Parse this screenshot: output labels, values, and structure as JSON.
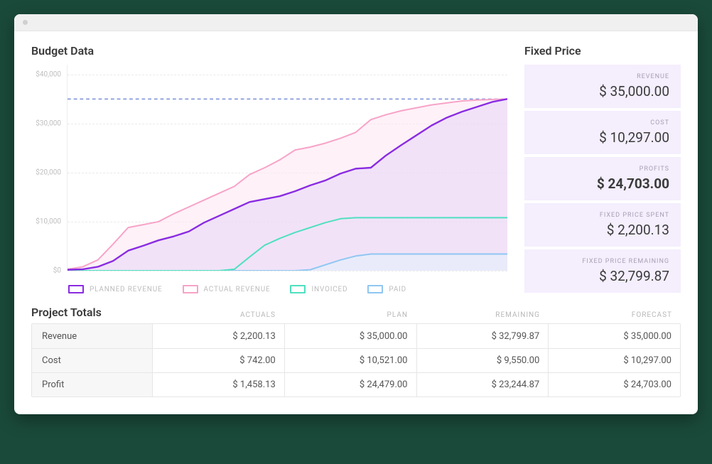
{
  "window": {
    "title": ""
  },
  "sections": {
    "budget_title": "Budget Data",
    "fixed_price_title": "Fixed Price",
    "project_totals_title": "Project Totals"
  },
  "chart": {
    "type": "area-line",
    "background_color": "#ffffff",
    "grid_color": "#eaeaea",
    "grid_dash": "4 4",
    "ylim": [
      0,
      42000
    ],
    "yticks": [
      {
        "v": 0,
        "label": "$0"
      },
      {
        "v": 10000,
        "label": "$10,000"
      },
      {
        "v": 20000,
        "label": "$20,000"
      },
      {
        "v": 30000,
        "label": "$30,000"
      },
      {
        "v": 40000,
        "label": "$40,000"
      }
    ],
    "x_count": 30,
    "target_line": {
      "value": 35000,
      "color": "#7a8fd6",
      "dash": "5 4",
      "width": 1.5
    },
    "series": [
      {
        "key": "planned_revenue",
        "label": "PLANNED REVENUE",
        "stroke": "#8a2be2",
        "fill": "#e6d6fa",
        "fill_opacity": 0.55,
        "width": 2.4,
        "values": [
          200,
          300,
          800,
          2000,
          4100,
          5100,
          6200,
          7000,
          8000,
          9800,
          11200,
          12600,
          14000,
          14600,
          15200,
          16200,
          17400,
          18400,
          19800,
          20800,
          21000,
          23500,
          25600,
          27600,
          29600,
          31200,
          32400,
          33400,
          34400,
          35000
        ]
      },
      {
        "key": "actual_revenue",
        "label": "ACTUAL REVENUE",
        "stroke": "#f7a3c8",
        "fill": "#fde6f1",
        "fill_opacity": 0.55,
        "width": 2,
        "values": [
          300,
          800,
          2200,
          5400,
          8800,
          9400,
          10000,
          11600,
          13000,
          14400,
          15800,
          17200,
          19600,
          21000,
          22600,
          24600,
          25200,
          26000,
          27000,
          28200,
          30800,
          31800,
          32600,
          33200,
          33800,
          34200,
          34600,
          34800,
          34900,
          35000
        ]
      },
      {
        "key": "invoiced",
        "label": "INVOICED",
        "stroke": "#4fe0c0",
        "fill": "none",
        "fill_opacity": 0,
        "width": 2,
        "values": [
          0,
          0,
          0,
          0,
          0,
          0,
          0,
          0,
          0,
          0,
          0,
          300,
          2800,
          5200,
          6600,
          7800,
          8800,
          9800,
          10600,
          10800,
          10800,
          10800,
          10800,
          10800,
          10800,
          10800,
          10800,
          10800,
          10800,
          10800
        ]
      },
      {
        "key": "paid",
        "label": "PAID",
        "stroke": "#8fc7f2",
        "fill": "#e5f1fb",
        "fill_opacity": 0.6,
        "width": 2,
        "values": [
          0,
          0,
          0,
          0,
          0,
          0,
          0,
          0,
          0,
          0,
          0,
          0,
          0,
          0,
          0,
          0,
          200,
          1200,
          2200,
          3000,
          3400,
          3400,
          3400,
          3400,
          3400,
          3400,
          3400,
          3400,
          3400,
          3400
        ]
      }
    ],
    "legend": [
      {
        "label": "PLANNED REVENUE",
        "color": "#8a2be2"
      },
      {
        "label": "ACTUAL REVENUE",
        "color": "#f7a3c8"
      },
      {
        "label": "INVOICED",
        "color": "#4fe0c0"
      },
      {
        "label": "PAID",
        "color": "#8fc7f2"
      }
    ]
  },
  "fixed_price": {
    "cards": [
      {
        "label": "REVENUE",
        "value": "$ 35,000.00",
        "bold": false
      },
      {
        "label": "COST",
        "value": "$ 10,297.00",
        "bold": false
      },
      {
        "label": "PROFITS",
        "value": "$ 24,703.00",
        "bold": true
      },
      {
        "label": "FIXED PRICE SPENT",
        "value": "$ 2,200.13",
        "bold": false
      },
      {
        "label": "FIXED PRICE REMAINING",
        "value": "$ 32,799.87",
        "bold": false
      }
    ],
    "card_bg": "#f4eefd"
  },
  "totals": {
    "columns": [
      "ACTUALS",
      "PLAN",
      "REMAINING",
      "FORECAST"
    ],
    "rows": [
      {
        "label": "Revenue",
        "cells": [
          "$ 2,200.13",
          "$ 35,000.00",
          "$ 32,799.87",
          "$ 35,000.00"
        ]
      },
      {
        "label": "Cost",
        "cells": [
          "$ 742.00",
          "$ 10,521.00",
          "$ 9,550.00",
          "$ 10,297.00"
        ]
      },
      {
        "label": "Profit",
        "cells": [
          "$ 1,458.13",
          "$ 24,479.00",
          "$ 23,244.87",
          "$ 24,703.00"
        ]
      }
    ]
  }
}
